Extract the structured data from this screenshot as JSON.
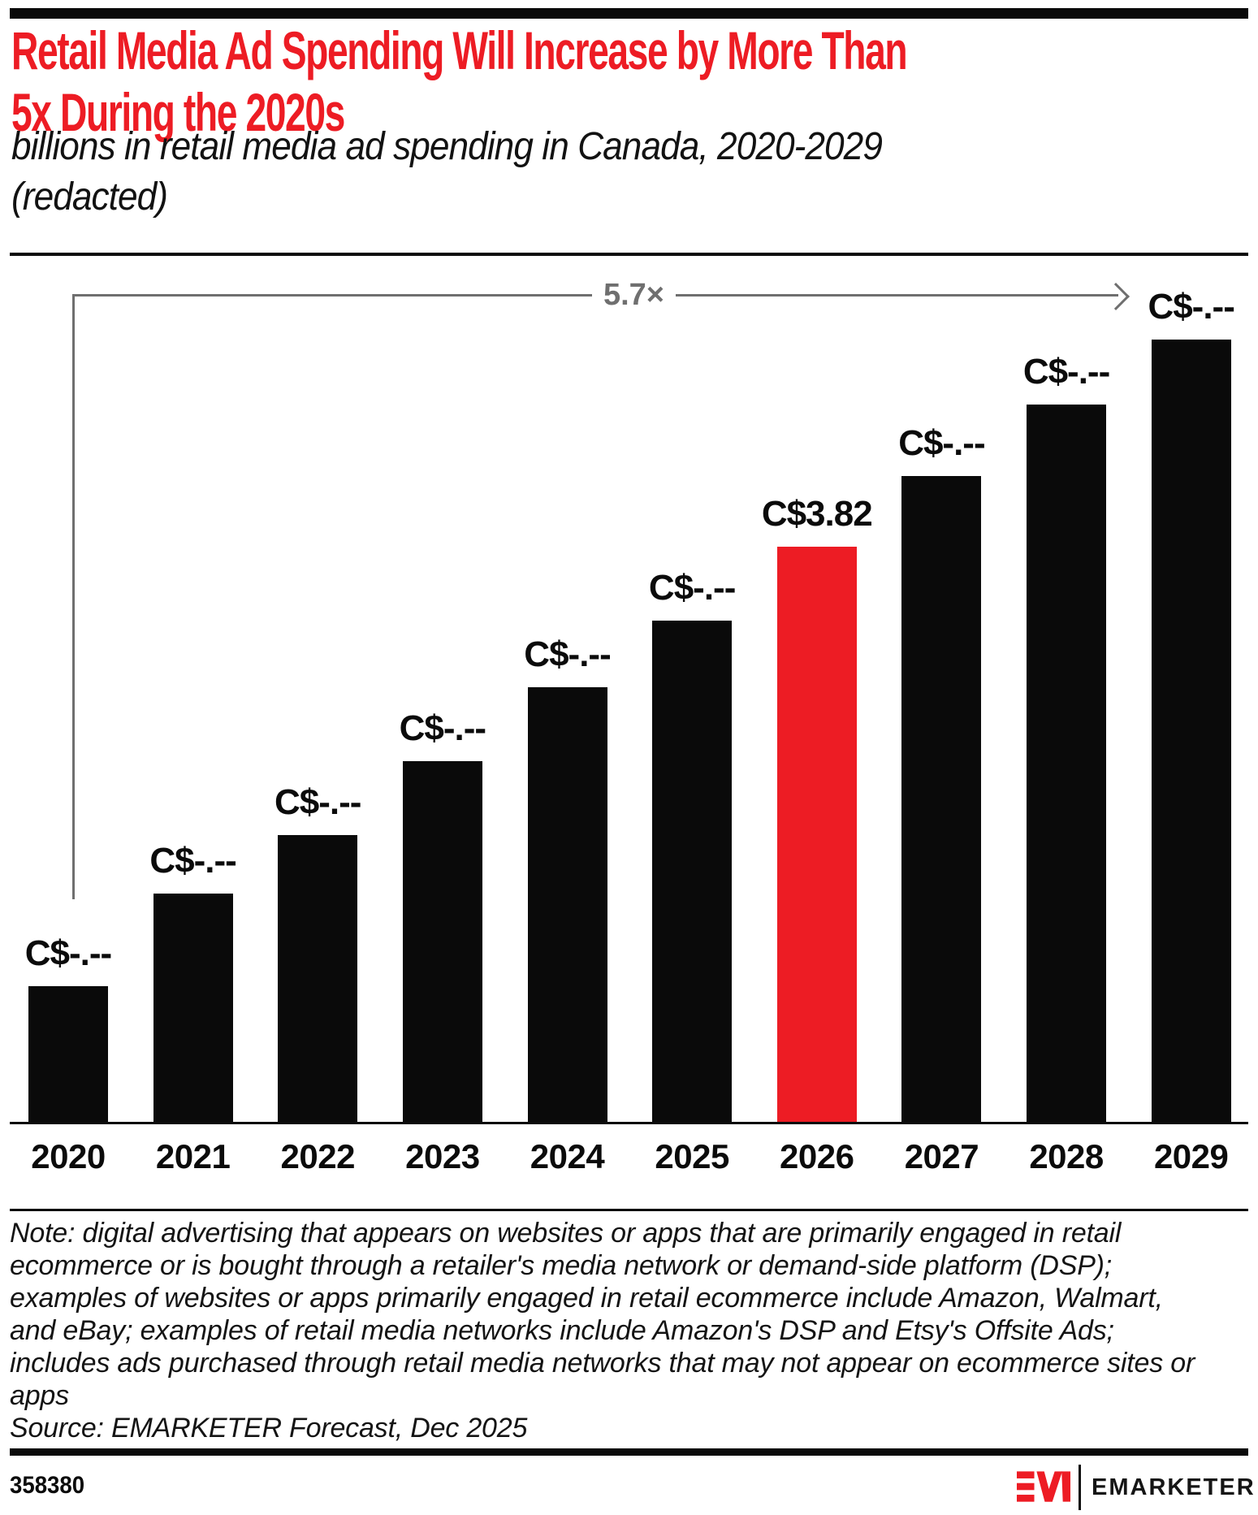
{
  "header": {
    "title_line1": "Retail Media Ad Spending Will Increase by More Than",
    "title_line2": "5x During the 2020s",
    "subtitle_line1": "billions in retail media ad spending in Canada, 2020-2029",
    "subtitle_line2": "(redacted)"
  },
  "chart_data": {
    "type": "bar",
    "title": "Retail Media Ad Spending Will Increase by More Than 5x During the 2020s",
    "subtitle": "billions in retail media ad spending in Canada, 2020-2029 (redacted)",
    "unit": "C$ billions",
    "categories": [
      "2020",
      "2021",
      "2022",
      "2023",
      "2024",
      "2025",
      "2026",
      "2027",
      "2028",
      "2029"
    ],
    "values": [
      0.91,
      1.52,
      1.91,
      2.4,
      2.89,
      3.33,
      3.82,
      4.29,
      4.76,
      5.19
    ],
    "value_labels": [
      "C$-.--",
      "C$-.--",
      "C$-.--",
      "C$-.--",
      "C$-.--",
      "C$-.--",
      "C$3.82",
      "C$-.--",
      "C$-.--",
      "C$-.--"
    ],
    "highlight_index": 6,
    "annotation": "5.7×",
    "ylim": [
      0,
      5.8
    ],
    "grid": false,
    "legend": "none",
    "xlabel": "",
    "ylabel": ""
  },
  "colors": {
    "accent_red": "#ED1C24",
    "bar_black": "#0A0A0A",
    "bracket_gray": "#6F6F6F"
  },
  "note": {
    "lines": [
      "Note: digital advertising that appears on websites or apps that are primarily engaged in retail",
      "ecommerce or is bought through a retailer's media network or demand-side platform (DSP);",
      "examples of websites or apps primarily engaged in retail ecommerce include Amazon, Walmart,",
      "and eBay; examples of retail media networks include Amazon's DSP and Etsy's Offsite Ads;",
      "includes ads purchased through retail media networks that may not appear on ecommerce sites or",
      "apps"
    ],
    "source": "Source: EMARKETER Forecast, Dec 2025"
  },
  "footer": {
    "chart_id": "358380",
    "brand": "EMARKETER"
  }
}
